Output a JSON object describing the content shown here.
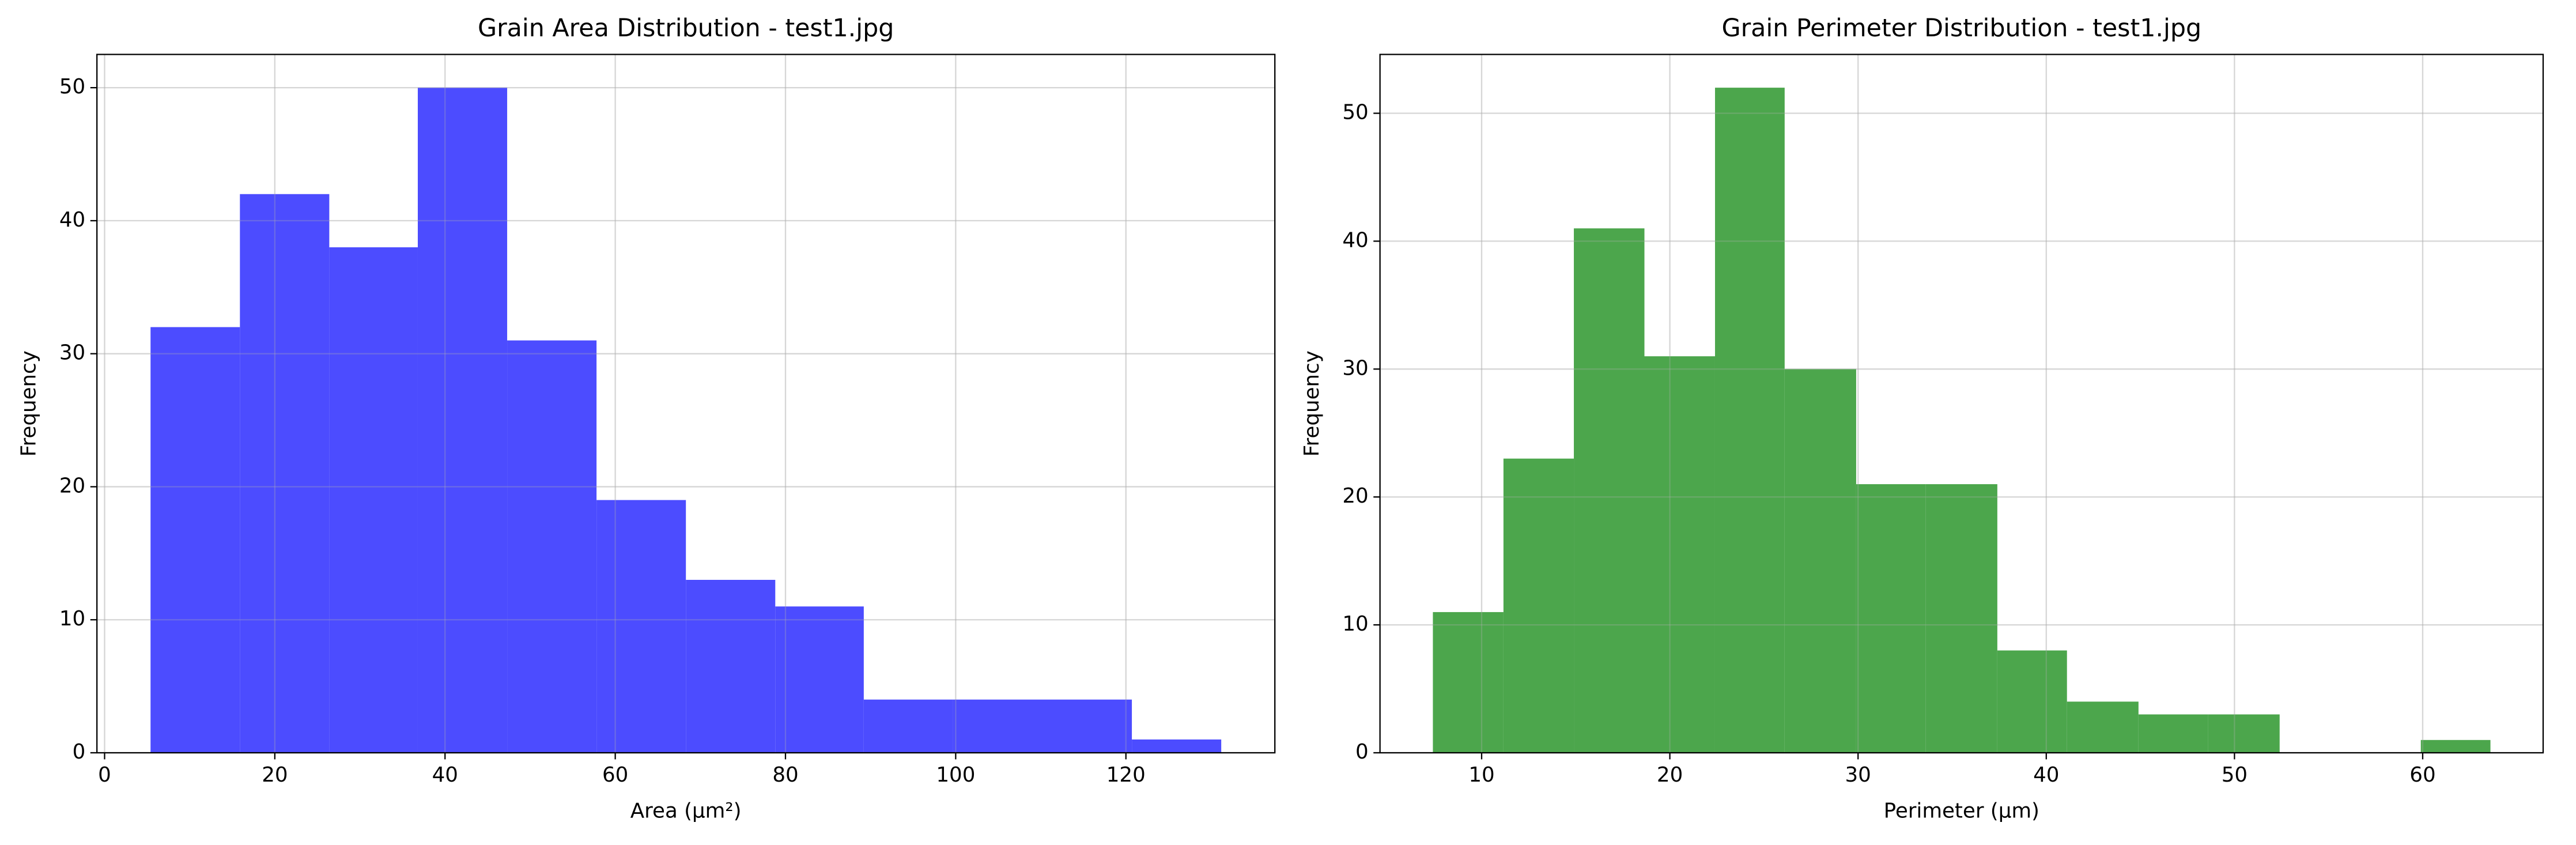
{
  "chart_data": [
    {
      "type": "histogram",
      "title": "Grain Area Distribution - test1.jpg",
      "x_label": "Area (µm²)",
      "y_label": "Frequency",
      "bins": [
        5.4,
        15.9,
        26.4,
        36.8,
        47.3,
        57.8,
        68.3,
        78.8,
        89.2,
        99.7,
        110.2,
        120.7,
        131.2
      ],
      "values": [
        32,
        42,
        38,
        50,
        31,
        19,
        13,
        11,
        4,
        4,
        4,
        1
      ],
      "color": "#4c4cff",
      "xlim": [
        -0.9,
        137.5
      ],
      "ylim": [
        0,
        52.5
      ],
      "xticks": [
        0,
        20,
        40,
        60,
        80,
        100,
        120
      ],
      "yticks": [
        0,
        10,
        20,
        30,
        40,
        50
      ],
      "grid": true
    },
    {
      "type": "histogram",
      "title": "Grain Perimeter Distribution - test1.jpg",
      "x_label": "Perimeter (µm)",
      "y_label": "Frequency",
      "bins": [
        7.41,
        11.16,
        14.9,
        18.65,
        22.4,
        26.1,
        29.9,
        33.6,
        37.4,
        41.1,
        44.9,
        48.6,
        52.4,
        56.1,
        59.9,
        63.6
      ],
      "values": [
        11,
        23,
        41,
        31,
        52,
        30,
        21,
        21,
        8,
        4,
        3,
        3,
        0,
        0,
        1
      ],
      "color": "#4ca64c",
      "xlim": [
        4.6,
        66.4
      ],
      "ylim": [
        0,
        54.6
      ],
      "xticks": [
        10,
        20,
        30,
        40,
        50,
        60
      ],
      "yticks": [
        0,
        10,
        20,
        30,
        40,
        50
      ],
      "grid": true
    }
  ]
}
